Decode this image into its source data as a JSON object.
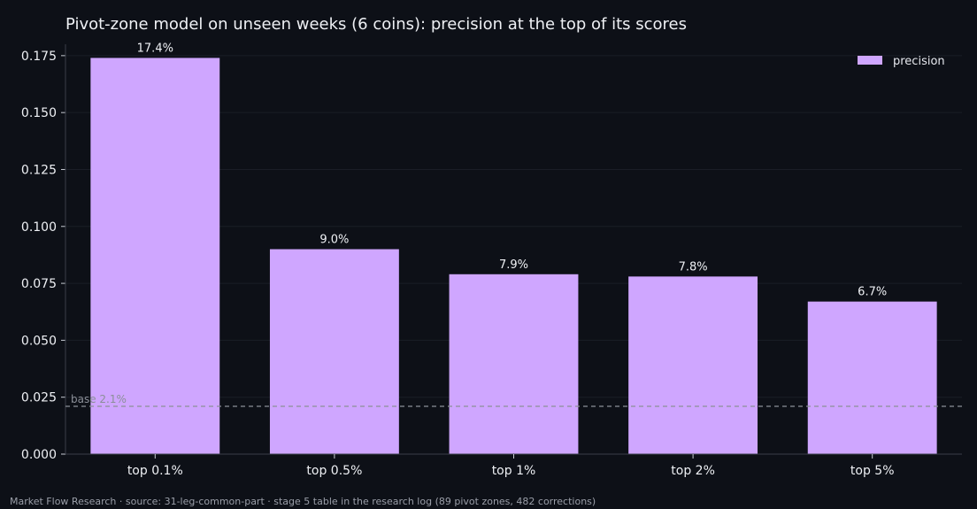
{
  "chart_data": {
    "type": "bar",
    "title": "Pivot-zone model on unseen weeks (6 coins): precision at the top of its scores",
    "categories": [
      "top 0.1%",
      "top 0.5%",
      "top 1%",
      "top 2%",
      "top 5%"
    ],
    "series": [
      {
        "name": "precision",
        "values": [
          0.174,
          0.09,
          0.079,
          0.078,
          0.067
        ],
        "data_labels": [
          "17.4%",
          "9.0%",
          "7.9%",
          "7.8%",
          "6.7%"
        ]
      }
    ],
    "ylim": [
      0,
      0.18
    ],
    "yticks": [
      "0.000",
      "0.025",
      "0.050",
      "0.075",
      "0.100",
      "0.125",
      "0.150",
      "0.175"
    ],
    "ytick_values": [
      0,
      0.025,
      0.05,
      0.075,
      0.1,
      0.125,
      0.15,
      0.175
    ],
    "baseline": {
      "value": 0.021,
      "label": "base 2.1%"
    },
    "legend": {
      "placement": "top-right"
    },
    "grid": true,
    "xlabel": "",
    "ylabel": "",
    "colors": {
      "bar": "#cfa6ff",
      "background": "#0d1017",
      "grid": "#1a1e27",
      "axis": "#3a3e48",
      "baseline": "#8b8f98"
    }
  },
  "footer": {
    "text": "Market Flow Research · source: 31-leg-common-part · stage 5 table in the research log (89 pivot zones, 482 corrections)"
  }
}
